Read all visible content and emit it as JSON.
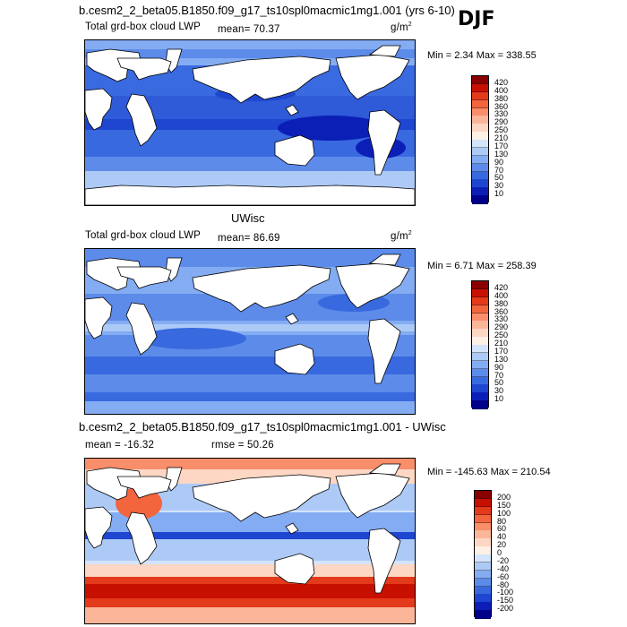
{
  "header": {
    "title": "b.cesm2_2_beta05.B1850.f09_g17_ts10spl0macmic1mg1.001 (yrs 6-10)",
    "season": "DJF"
  },
  "panels": [
    {
      "title": "",
      "left_label": "Total grd-box cloud LWP",
      "mean_text": "mean=  70.37",
      "units": "g/m",
      "units_sup": "2",
      "minmax": "Min =   2.34 Max = 338.55",
      "colorbar_labels": [
        "420",
        "400",
        "380",
        "360",
        "330",
        "290",
        "250",
        "210",
        "170",
        "130",
        "90",
        "70",
        "50",
        "30",
        "10"
      ],
      "colorbar_colors": [
        "#8b0000",
        "#c81000",
        "#e33a1b",
        "#f2653d",
        "#f88e6a",
        "#fbb599",
        "#fdd7c4",
        "#fff0e6",
        "#d3e4fb",
        "#adcaf7",
        "#84acf2",
        "#5c8be9",
        "#3969df",
        "#1e46d0",
        "#0b1fb7",
        "#00008b"
      ]
    },
    {
      "title": "UWisc",
      "left_label": "Total grd-box cloud LWP",
      "mean_text": "mean=  86.69",
      "units": "g/m",
      "units_sup": "2",
      "minmax": "Min =   6.71 Max = 258.39",
      "colorbar_labels": [
        "420",
        "400",
        "380",
        "360",
        "330",
        "290",
        "250",
        "210",
        "170",
        "130",
        "90",
        "70",
        "50",
        "30",
        "10"
      ],
      "colorbar_colors": [
        "#8b0000",
        "#c81000",
        "#e33a1b",
        "#f2653d",
        "#f88e6a",
        "#fbb599",
        "#fdd7c4",
        "#fff0e6",
        "#d3e4fb",
        "#adcaf7",
        "#84acf2",
        "#5c8be9",
        "#3969df",
        "#1e46d0",
        "#0b1fb7",
        "#00008b"
      ]
    },
    {
      "title": "b.cesm2_2_beta05.B1850.f09_g17_ts10spl0macmic1mg1.001 - UWisc",
      "left_label": "mean =  -16.32",
      "mean_text": "rmse =   50.26",
      "units": "",
      "units_sup": "",
      "minmax": "Min = -145.63 Max = 210.54",
      "colorbar_labels": [
        "200",
        "150",
        "100",
        "80",
        "60",
        "40",
        "20",
        "0",
        "-20",
        "-40",
        "-60",
        "-80",
        "-100",
        "-150",
        "-200"
      ],
      "colorbar_colors": [
        "#8b0000",
        "#c81000",
        "#e33a1b",
        "#f2653d",
        "#f88e6a",
        "#fbb599",
        "#fdd7c4",
        "#fff0e6",
        "#d3e4fb",
        "#adcaf7",
        "#84acf2",
        "#5c8be9",
        "#3969df",
        "#1e46d0",
        "#0b1fb7",
        "#00008b"
      ]
    }
  ]
}
